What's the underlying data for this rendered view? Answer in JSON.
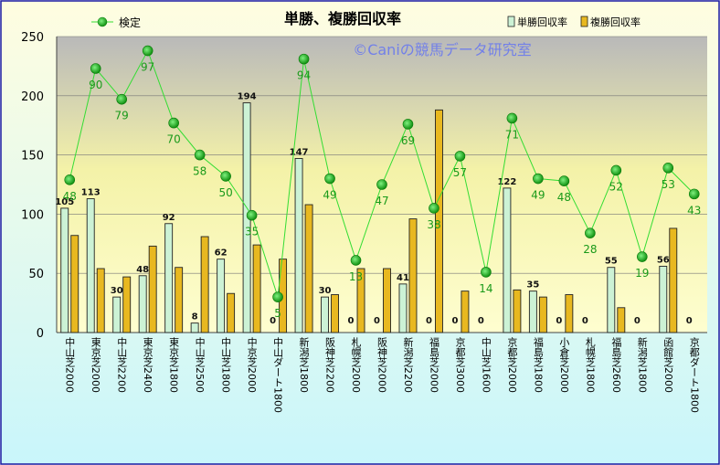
{
  "chart_data": {
    "type": "bar",
    "title": "単勝、複勝回収率",
    "watermark": "©Caniの競馬データ研究室",
    "ylim": [
      0,
      250
    ],
    "yticks": [
      0,
      50,
      100,
      150,
      200,
      250
    ],
    "categories": [
      "中山芝2000",
      "東京芝2000",
      "中山芝2200",
      "東京芝2400",
      "東京芝1800",
      "中山芝2500",
      "中山芝1800",
      "中京芝2000",
      "中山ダート1800",
      "新潟芝1800",
      "阪神芝2200",
      "札幌芝2000",
      "阪神芝2000",
      "新潟芝2200",
      "福島芝2000",
      "京都芝3000",
      "中山芝1600",
      "京都芝2000",
      "福島芝1800",
      "小倉芝2000",
      "札幌芝1800",
      "福島芝2600",
      "新潟芝1800",
      "函館芝2000",
      "京都ダート1800"
    ],
    "series": [
      {
        "name": "単勝回収率",
        "kind": "bar",
        "color": "#ccf2d5",
        "values": [
          105,
          113,
          30,
          48,
          92,
          8,
          62,
          194,
          0,
          147,
          30,
          0,
          0,
          41,
          0,
          0,
          0,
          122,
          35,
          0,
          0,
          55,
          0,
          56,
          0
        ],
        "labels": [
          "105",
          "113",
          "30",
          "48",
          "92",
          "8",
          "62",
          "194",
          "0",
          "147",
          "30",
          "0",
          "0",
          "41",
          "0",
          "0",
          "0",
          "122",
          "35",
          "0",
          "0",
          "55",
          "0",
          "56",
          "0"
        ]
      },
      {
        "name": "複勝回収率",
        "kind": "bar",
        "color": "#e8b820",
        "values": [
          82,
          54,
          47,
          73,
          55,
          81,
          33,
          74,
          62,
          108,
          32,
          54,
          54,
          96,
          188,
          35,
          0,
          36,
          30,
          32,
          0,
          21,
          0,
          88,
          0
        ]
      },
      {
        "name": "検定",
        "kind": "line",
        "color": "#22aa22",
        "values": [
          129,
          223,
          197,
          238,
          177,
          150,
          132,
          99,
          30,
          231,
          130,
          61,
          125,
          176,
          105,
          149,
          51,
          181,
          130,
          128,
          84,
          137,
          64,
          139,
          117
        ],
        "labels": [
          "48",
          "90",
          "79",
          "97",
          "70",
          "58",
          "50",
          "35",
          "5",
          "94",
          "49",
          "13",
          "47",
          "69",
          "38",
          "57",
          "14",
          "71",
          "49",
          "48",
          "28",
          "52",
          "19",
          "53",
          "43"
        ]
      }
    ]
  }
}
